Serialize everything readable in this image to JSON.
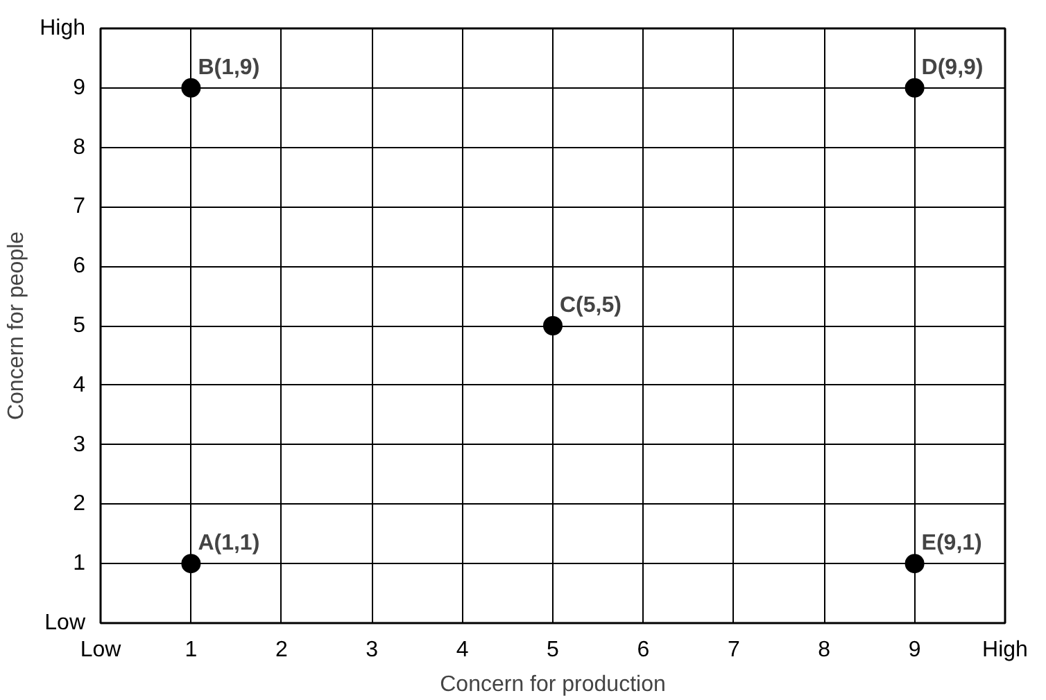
{
  "chart_data": {
    "type": "scatter",
    "xlabel": "Concern for production",
    "ylabel": "Concern for people",
    "x": [
      1,
      1,
      5,
      9,
      9
    ],
    "values": [
      1,
      9,
      5,
      9,
      1
    ],
    "color": "#000000",
    "marker": "circle",
    "xlim": [
      0,
      10
    ],
    "ylim": [
      0,
      10
    ],
    "xticks": [
      {
        "value": 0,
        "label": "Low"
      },
      1,
      2,
      3,
      4,
      5,
      6,
      7,
      8,
      9,
      {
        "value": 10,
        "label": "High"
      }
    ],
    "yticks": [
      {
        "value": 0,
        "label": "Low"
      },
      1,
      2,
      3,
      4,
      5,
      6,
      7,
      8,
      9,
      {
        "value": 10,
        "label": "High"
      }
    ],
    "grid": true,
    "annotations": [
      {
        "text": "A(1,1)",
        "x": 1,
        "y": 1
      },
      {
        "text": "B(1,9)",
        "x": 1,
        "y": 9
      },
      {
        "text": "C(5,5)",
        "x": 5,
        "y": 5
      },
      {
        "text": "D(9,9)",
        "x": 9,
        "y": 9
      },
      {
        "text": "E(9,1)",
        "x": 9,
        "y": 1
      }
    ]
  }
}
